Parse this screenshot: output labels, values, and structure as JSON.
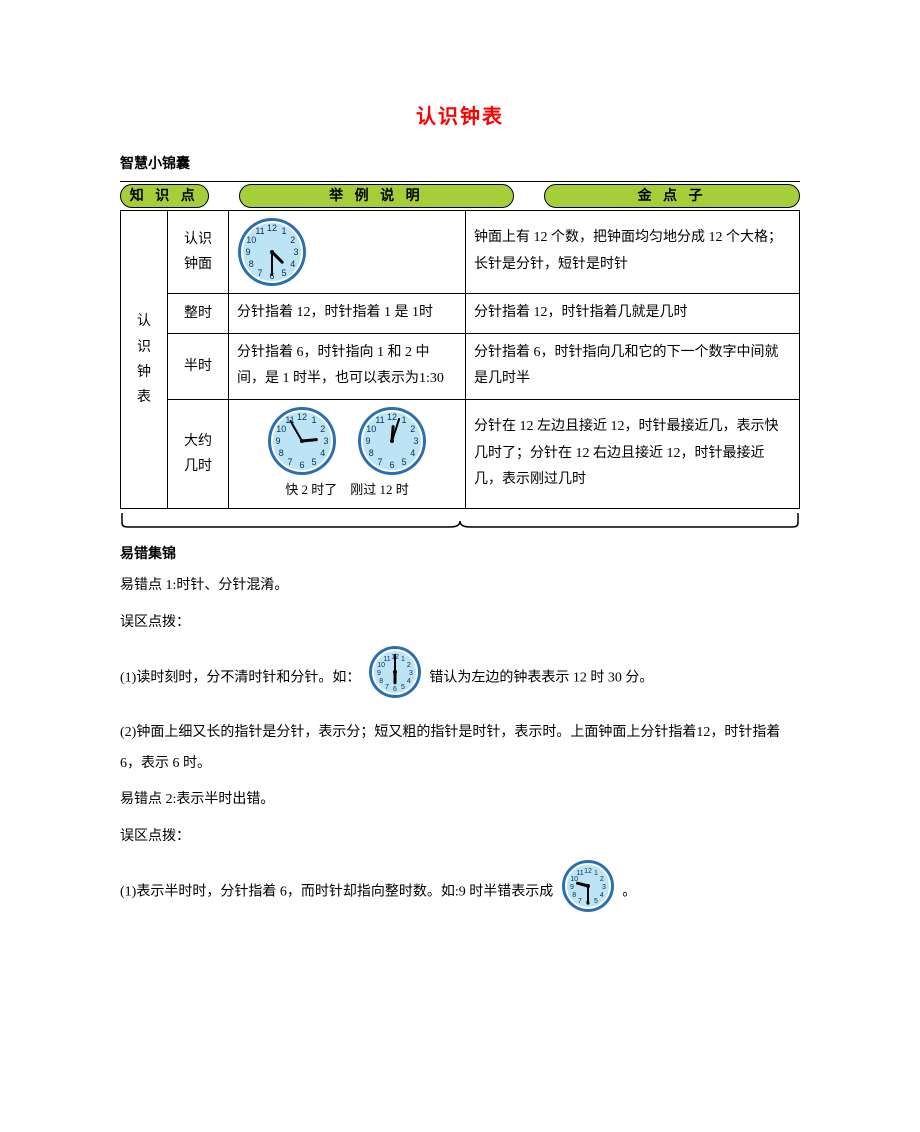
{
  "title": "认识钟表",
  "section1_heading": "智慧小锦囊",
  "headers": {
    "h1": "知 识 点",
    "h2": "举 例 说 明",
    "h3": "金 点 子"
  },
  "table": {
    "col1": "认识钟表",
    "rows": [
      {
        "sub": "认识钟面",
        "example_type": "clock",
        "example": "",
        "tip": "钟面上有 12 个数，把钟面均匀地分成 12 个大格；长针是分针，短针是时针"
      },
      {
        "sub": "整时",
        "example_type": "text",
        "example": "分针指着 12，时针指着 1 是 1时",
        "tip": "分针指着 12，时针指着几就是几时"
      },
      {
        "sub": "半时",
        "example_type": "text",
        "example": "分针指着 6，时针指向 1 和 2 中间，是 1 时半，也可以表示为1:30",
        "tip": "分针指着 6，时针指向几和它的下一个数字中间就是几时半"
      },
      {
        "sub": "大约几时",
        "example_type": "twoClocks",
        "label_a": "快 2 时了",
        "label_b": "刚过 12 时",
        "tip": "分针在 12 左边且接近 12，时针最接近几，表示快几时了；分针在 12 右边且接近 12，时针最接近几，表示刚过几时"
      }
    ]
  },
  "section2_heading": "易错集锦",
  "err1_title": "易错点 1:时针、分针混淆。",
  "tip_label": "误区点拨：",
  "err1_p1a": "(1)读时刻时，分不清时针和分针。如：",
  "err1_p1b": " 错认为左边的钟表表示 12 时 30 分。",
  "err1_p2": "(2)钟面上细又长的指针是分针，表示分；短又粗的指针是时针，表示时。上面钟面上分针指着12，时针指着 6，表示 6 时。",
  "err2_title": "易错点 2:表示半时出错。",
  "err2_p1a": "(1)表示半时时，分针指着 6，而时针却指向整时数。如:9 时半错表示成 ",
  "err2_p1b": " 。",
  "clocks": {
    "big": {
      "r": 32,
      "face": "#bde4f4",
      "ring": "#2a6fb5",
      "num_color": "#0b2b55",
      "hand_color": "#000000"
    },
    "small": {
      "r": 24,
      "face": "#bde4f4",
      "ring": "#2a6fb5",
      "num_color": "#0b2b55",
      "hand_color": "#000000"
    },
    "row1": {
      "hour": 4,
      "minute": 30
    },
    "row4a": {
      "hour": 1.9,
      "minute": 55
    },
    "row4b": {
      "hour": 12.1,
      "minute": 3
    },
    "err1": {
      "hour": 6,
      "minute": 0
    },
    "err2": {
      "hour": 9,
      "minute": 30
    }
  },
  "colors": {
    "header_bg": "#a6ce39",
    "title": "#ff0000",
    "border": "#000000",
    "bg": "#ffffff"
  }
}
